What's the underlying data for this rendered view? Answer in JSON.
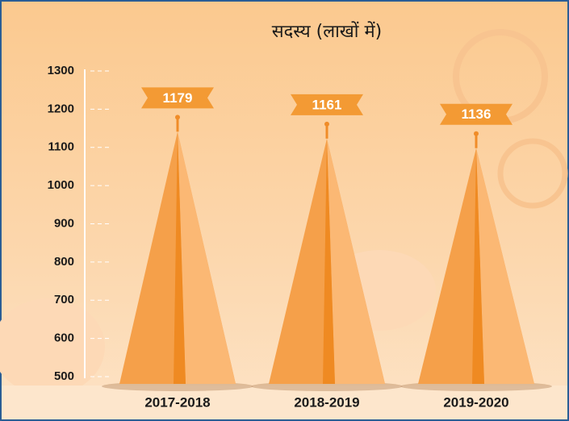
{
  "chart_data": {
    "type": "cone",
    "title": "सदस्य (लाखों में)",
    "categories": [
      "2017-2018",
      "2018-2019",
      "2019-2020"
    ],
    "values": [
      1179,
      1161,
      1136
    ],
    "color": "#f5a04a",
    "ylim": [
      500,
      1300
    ],
    "yticks": [
      500,
      600,
      700,
      800,
      900,
      1000,
      1100,
      1200,
      1300
    ]
  }
}
